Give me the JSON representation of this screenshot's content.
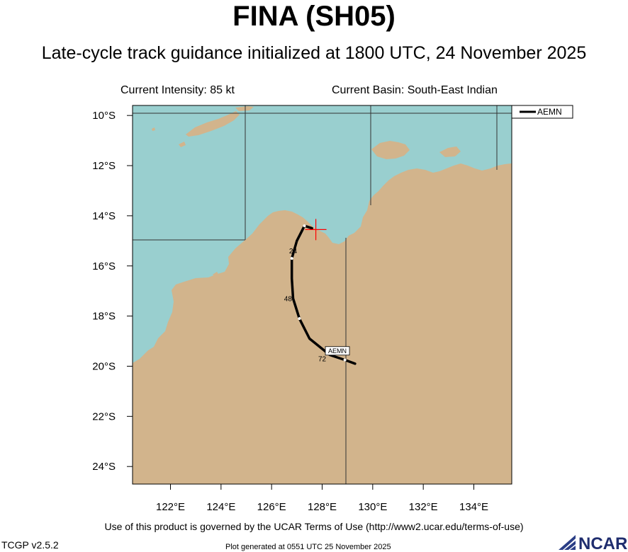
{
  "header": {
    "title": "FINA (SH05)",
    "subtitle": "Late-cycle track guidance initialized at 1800 UTC, 24 November 2025",
    "intensity": "Current Intensity: 85 kt",
    "basin": "Current Basin: South-East Indian"
  },
  "map": {
    "lon_range": [
      120.5,
      135.5
    ],
    "lat_range": [
      -24.7,
      -9.6
    ],
    "lon_ticks": [
      {
        "value": 122,
        "label": "122°E"
      },
      {
        "value": 124,
        "label": "124°E"
      },
      {
        "value": 126,
        "label": "126°E"
      },
      {
        "value": 128,
        "label": "128°E"
      },
      {
        "value": 130,
        "label": "130°E"
      },
      {
        "value": 132,
        "label": "132°E"
      },
      {
        "value": 134,
        "label": "134°E"
      }
    ],
    "lat_ticks": [
      {
        "value": -10,
        "label": "10°S"
      },
      {
        "value": -12,
        "label": "12°S"
      },
      {
        "value": -14,
        "label": "14°S"
      },
      {
        "value": -16,
        "label": "16°S"
      },
      {
        "value": -18,
        "label": "18°S"
      },
      {
        "value": -20,
        "label": "20°S"
      },
      {
        "value": -22,
        "label": "22°S"
      },
      {
        "value": -24,
        "label": "24°S"
      }
    ],
    "colors": {
      "ocean": "#99cfcf",
      "land": "#d2b48c",
      "track": "#000000",
      "current_position": "#ff0000"
    }
  },
  "legend": {
    "entries": [
      "AEMN"
    ]
  },
  "track": {
    "name": "AEMN",
    "current_position": {
      "lon": 127.75,
      "lat": -14.55
    },
    "points": [
      {
        "lon": 127.6,
        "lat": -14.5
      },
      {
        "lon": 127.3,
        "lat": -14.4
      },
      {
        "lon": 127.2,
        "lat": -14.6
      },
      {
        "lon": 127.0,
        "lat": -15.0
      },
      {
        "lon": 126.8,
        "lat": -15.7
      },
      {
        "lon": 126.8,
        "lat": -16.5
      },
      {
        "lon": 126.85,
        "lat": -17.3
      },
      {
        "lon": 127.1,
        "lat": -18.1
      },
      {
        "lon": 127.5,
        "lat": -18.9
      },
      {
        "lon": 128.3,
        "lat": -19.55
      },
      {
        "lon": 128.9,
        "lat": -19.75
      },
      {
        "lon": 129.3,
        "lat": -19.9
      }
    ],
    "markers": [
      {
        "lon": 127.3,
        "lat": -14.4
      },
      {
        "lon": 126.8,
        "lat": -15.7
      },
      {
        "lon": 127.1,
        "lat": -18.1
      },
      {
        "lon": 128.9,
        "lat": -19.75
      }
    ],
    "tau_labels": [
      {
        "text": "24",
        "lon": 126.85,
        "lat": -15.5
      },
      {
        "text": "48",
        "lon": 126.65,
        "lat": -17.4
      },
      {
        "text": "72",
        "lon": 128.0,
        "lat": -19.8
      }
    ],
    "end_label": {
      "text": "AEMN",
      "lon": 128.8,
      "lat": -19.5
    }
  },
  "footer": {
    "terms": "Use of this product is governed by the UCAR Terms of Use (http://www2.ucar.edu/terms-of-use)",
    "version": "TCGP v2.5.2",
    "generated": "Plot generated at 0551 UTC   25 November 2025",
    "logo": "NCAR"
  }
}
